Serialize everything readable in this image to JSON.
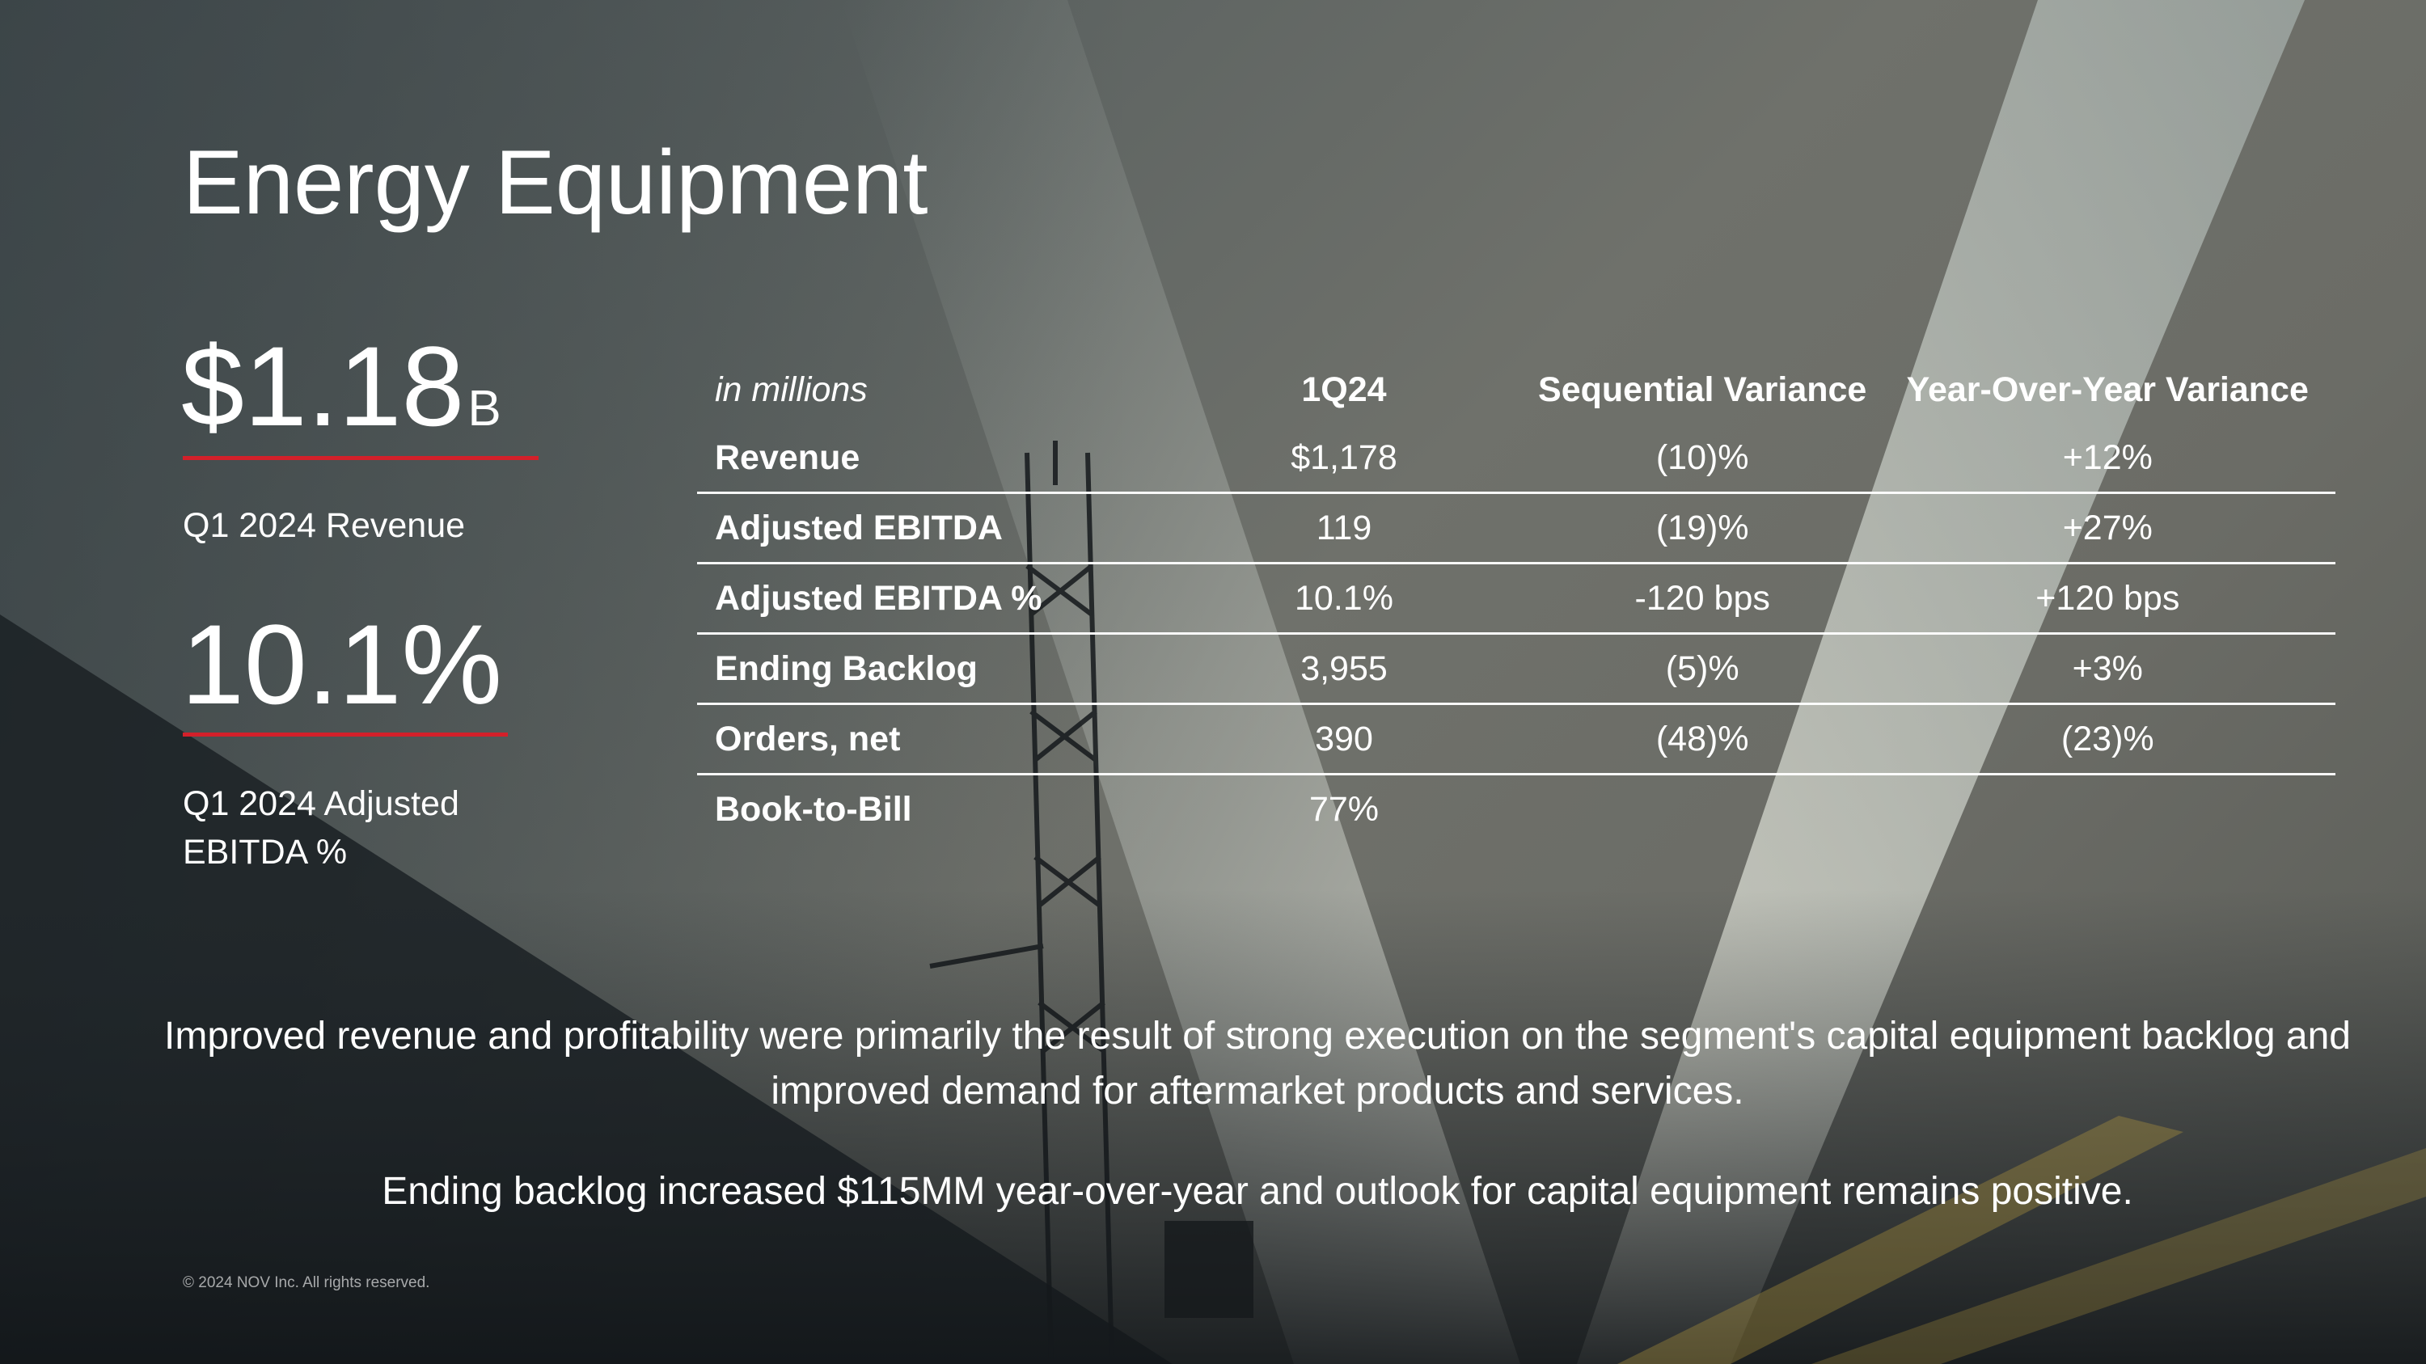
{
  "slide": {
    "title": "Energy Equipment",
    "kpis": [
      {
        "value": "$1.18",
        "unit": "B",
        "label": "Q1 2024 Revenue"
      },
      {
        "value": "10.1%",
        "unit": "",
        "label": "Q1 2024 Adjusted EBITDA %"
      }
    ],
    "accent_color": "#d3202a",
    "table": {
      "headers": [
        "in millions",
        "1Q24",
        "Sequential Variance",
        "Year-Over-Year Variance"
      ],
      "rows": [
        {
          "label": "Revenue",
          "q": "$1,178",
          "seq": "(10)%",
          "yoy": "+12%"
        },
        {
          "label": "Adjusted EBITDA",
          "q": "119",
          "seq": "(19)%",
          "yoy": "+27%"
        },
        {
          "label": "Adjusted EBITDA %",
          "q": "10.1%",
          "seq": "-120 bps",
          "yoy": "+120 bps"
        },
        {
          "label": "Ending Backlog",
          "q": "3,955",
          "seq": "(5)%",
          "yoy": "+3%"
        },
        {
          "label": "Orders, net",
          "q": "390",
          "seq": "(48)%",
          "yoy": "(23)%"
        },
        {
          "label": "Book-to-Bill",
          "q": "77%",
          "seq": "",
          "yoy": ""
        }
      ]
    },
    "commentary": [
      "Improved revenue and profitability were primarily the result of strong execution on the segment's capital equipment backlog and improved demand for aftermarket products and services.",
      "Ending backlog increased $115MM year-over-year and outlook for capital equipment remains positive."
    ],
    "footer": "© 2024 NOV Inc. All rights reserved."
  }
}
